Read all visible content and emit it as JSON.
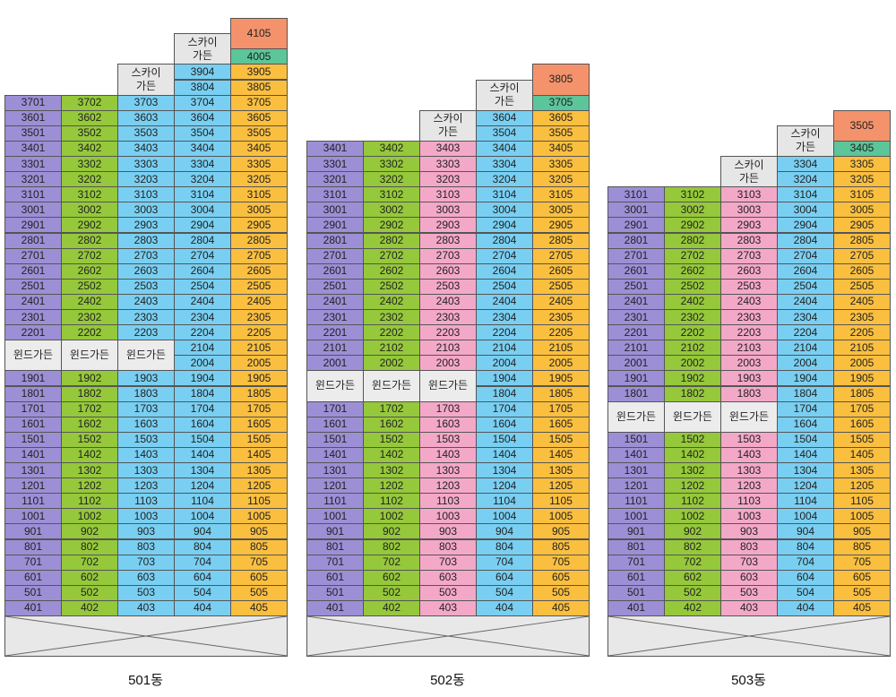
{
  "colors": {
    "purple": "#9d8fd6",
    "green": "#95c83a",
    "blue": "#79cff2",
    "pink": "#f4a8c8",
    "orange": "#fbbf3f",
    "salmon": "#f4936b",
    "teal": "#5cc59a",
    "gray": "#e6e6e6"
  },
  "sky_garden_label": "스카이\n가든",
  "wind_garden_label": "윈드가든",
  "buildings": [
    {
      "name": "501동",
      "wind_after_floor": 22,
      "rows": [
        {
          "floor": 41,
          "cols": [
            null,
            null,
            null,
            "sky",
            "4105"
          ],
          "top": true
        },
        {
          "floor": 40,
          "cols": [
            null,
            null,
            null,
            "sky",
            "4005"
          ]
        },
        {
          "floor": 39,
          "cols": [
            null,
            null,
            "sky",
            "3904",
            "3905"
          ]
        },
        {
          "floor": 38,
          "cols": [
            null,
            null,
            "sky",
            "3804",
            "3805"
          ]
        },
        {
          "floor": 37,
          "cols": [
            "3701",
            "3702",
            "3703",
            "3704",
            "3705"
          ]
        },
        {
          "floor": 36,
          "cols": [
            "3601",
            "3602",
            "3603",
            "3604",
            "3605"
          ]
        },
        {
          "floor": 35,
          "cols": [
            "3501",
            "3502",
            "3503",
            "3504",
            "3505"
          ]
        },
        {
          "floor": 34,
          "cols": [
            "3401",
            "3402",
            "3403",
            "3404",
            "3405"
          ]
        },
        {
          "floor": 33,
          "cols": [
            "3301",
            "3302",
            "3303",
            "3304",
            "3305"
          ]
        },
        {
          "floor": 32,
          "cols": [
            "3201",
            "3202",
            "3203",
            "3204",
            "3205"
          ]
        },
        {
          "floor": 31,
          "cols": [
            "3101",
            "3102",
            "3103",
            "3104",
            "3105"
          ]
        },
        {
          "floor": 30,
          "cols": [
            "3001",
            "3002",
            "3003",
            "3004",
            "3005"
          ]
        },
        {
          "floor": 29,
          "cols": [
            "2901",
            "2902",
            "2903",
            "2904",
            "2905"
          ]
        },
        {
          "floor": 28,
          "cols": [
            "2801",
            "2802",
            "2803",
            "2804",
            "2805"
          ]
        },
        {
          "floor": 27,
          "cols": [
            "2701",
            "2702",
            "2703",
            "2704",
            "2705"
          ]
        },
        {
          "floor": 26,
          "cols": [
            "2601",
            "2602",
            "2603",
            "2604",
            "2605"
          ]
        },
        {
          "floor": 25,
          "cols": [
            "2501",
            "2502",
            "2503",
            "2504",
            "2505"
          ]
        },
        {
          "floor": 24,
          "cols": [
            "2401",
            "2402",
            "2403",
            "2404",
            "2405"
          ]
        },
        {
          "floor": 23,
          "cols": [
            "2301",
            "2302",
            "2303",
            "2304",
            "2305"
          ]
        },
        {
          "floor": 22,
          "cols": [
            "2201",
            "2202",
            "2203",
            "2204",
            "2205"
          ]
        },
        {
          "floor": 21,
          "cols": [
            "wind",
            "wind",
            "wind",
            "2104",
            "2105"
          ]
        },
        {
          "floor": 20,
          "cols": [
            "wind",
            "wind",
            "wind",
            "2004",
            "2005"
          ]
        },
        {
          "floor": 19,
          "cols": [
            "1901",
            "1902",
            "1903",
            "1904",
            "1905"
          ]
        },
        {
          "floor": 18,
          "cols": [
            "1801",
            "1802",
            "1803",
            "1804",
            "1805"
          ]
        },
        {
          "floor": 17,
          "cols": [
            "1701",
            "1702",
            "1703",
            "1704",
            "1705"
          ]
        },
        {
          "floor": 16,
          "cols": [
            "1601",
            "1602",
            "1603",
            "1604",
            "1605"
          ]
        },
        {
          "floor": 15,
          "cols": [
            "1501",
            "1502",
            "1503",
            "1504",
            "1505"
          ]
        },
        {
          "floor": 14,
          "cols": [
            "1401",
            "1402",
            "1403",
            "1404",
            "1405"
          ]
        },
        {
          "floor": 13,
          "cols": [
            "1301",
            "1302",
            "1303",
            "1304",
            "1305"
          ]
        },
        {
          "floor": 12,
          "cols": [
            "1201",
            "1202",
            "1203",
            "1204",
            "1205"
          ]
        },
        {
          "floor": 11,
          "cols": [
            "1101",
            "1102",
            "1103",
            "1104",
            "1105"
          ]
        },
        {
          "floor": 10,
          "cols": [
            "1001",
            "1002",
            "1003",
            "1004",
            "1005"
          ]
        },
        {
          "floor": 9,
          "cols": [
            "901",
            "902",
            "903",
            "904",
            "905"
          ]
        },
        {
          "floor": 8,
          "cols": [
            "801",
            "802",
            "803",
            "804",
            "805"
          ]
        },
        {
          "floor": 7,
          "cols": [
            "701",
            "702",
            "703",
            "704",
            "705"
          ]
        },
        {
          "floor": 6,
          "cols": [
            "601",
            "602",
            "603",
            "604",
            "605"
          ]
        },
        {
          "floor": 5,
          "cols": [
            "501",
            "502",
            "503",
            "504",
            "505"
          ]
        },
        {
          "floor": 4,
          "cols": [
            "401",
            "402",
            "403",
            "404",
            "405"
          ]
        }
      ]
    },
    {
      "name": "502동",
      "rows": [
        {
          "floor": 38,
          "cols": [
            null,
            null,
            null,
            "sky",
            "3805"
          ],
          "top": true
        },
        {
          "floor": 37,
          "cols": [
            null,
            null,
            null,
            "sky",
            "3705"
          ]
        },
        {
          "floor": 36,
          "cols": [
            null,
            null,
            "sky",
            "3604",
            "3605"
          ]
        },
        {
          "floor": 35,
          "cols": [
            null,
            null,
            "sky",
            "3504",
            "3505"
          ]
        },
        {
          "floor": 34,
          "cols": [
            "3401",
            "3402",
            "3403",
            "3404",
            "3405"
          ]
        },
        {
          "floor": 33,
          "cols": [
            "3301",
            "3302",
            "3303",
            "3304",
            "3305"
          ]
        },
        {
          "floor": 32,
          "cols": [
            "3201",
            "3202",
            "3203",
            "3204",
            "3205"
          ]
        },
        {
          "floor": 31,
          "cols": [
            "3101",
            "3102",
            "3103",
            "3104",
            "3105"
          ]
        },
        {
          "floor": 30,
          "cols": [
            "3001",
            "3002",
            "3003",
            "3004",
            "3005"
          ]
        },
        {
          "floor": 29,
          "cols": [
            "2901",
            "2902",
            "2903",
            "2904",
            "2905"
          ]
        },
        {
          "floor": 28,
          "cols": [
            "2801",
            "2802",
            "2803",
            "2804",
            "2805"
          ]
        },
        {
          "floor": 27,
          "cols": [
            "2701",
            "2702",
            "2703",
            "2704",
            "2705"
          ]
        },
        {
          "floor": 26,
          "cols": [
            "2601",
            "2602",
            "2603",
            "2604",
            "2605"
          ]
        },
        {
          "floor": 25,
          "cols": [
            "2501",
            "2502",
            "2503",
            "2504",
            "2505"
          ]
        },
        {
          "floor": 24,
          "cols": [
            "2401",
            "2402",
            "2403",
            "2404",
            "2405"
          ]
        },
        {
          "floor": 23,
          "cols": [
            "2301",
            "2302",
            "2303",
            "2304",
            "2305"
          ]
        },
        {
          "floor": 22,
          "cols": [
            "2201",
            "2202",
            "2203",
            "2204",
            "2205"
          ]
        },
        {
          "floor": 21,
          "cols": [
            "2101",
            "2102",
            "2103",
            "2104",
            "2105"
          ]
        },
        {
          "floor": 20,
          "cols": [
            "2001",
            "2002",
            "2003",
            "2004",
            "2005"
          ]
        },
        {
          "floor": 19,
          "cols": [
            "wind",
            "wind",
            "wind",
            "1904",
            "1905"
          ]
        },
        {
          "floor": 18,
          "cols": [
            "wind",
            "wind",
            "wind",
            "1804",
            "1805"
          ]
        },
        {
          "floor": 17,
          "cols": [
            "1701",
            "1702",
            "1703",
            "1704",
            "1705"
          ]
        },
        {
          "floor": 16,
          "cols": [
            "1601",
            "1602",
            "1603",
            "1604",
            "1605"
          ]
        },
        {
          "floor": 15,
          "cols": [
            "1501",
            "1502",
            "1503",
            "1504",
            "1505"
          ]
        },
        {
          "floor": 14,
          "cols": [
            "1401",
            "1402",
            "1403",
            "1404",
            "1405"
          ]
        },
        {
          "floor": 13,
          "cols": [
            "1301",
            "1302",
            "1303",
            "1304",
            "1305"
          ]
        },
        {
          "floor": 12,
          "cols": [
            "1201",
            "1202",
            "1203",
            "1204",
            "1205"
          ]
        },
        {
          "floor": 11,
          "cols": [
            "1101",
            "1102",
            "1103",
            "1104",
            "1105"
          ]
        },
        {
          "floor": 10,
          "cols": [
            "1001",
            "1002",
            "1003",
            "1004",
            "1005"
          ]
        },
        {
          "floor": 9,
          "cols": [
            "901",
            "902",
            "903",
            "904",
            "905"
          ]
        },
        {
          "floor": 8,
          "cols": [
            "801",
            "802",
            "803",
            "804",
            "805"
          ]
        },
        {
          "floor": 7,
          "cols": [
            "701",
            "702",
            "703",
            "704",
            "705"
          ]
        },
        {
          "floor": 6,
          "cols": [
            "601",
            "602",
            "603",
            "604",
            "605"
          ]
        },
        {
          "floor": 5,
          "cols": [
            "501",
            "502",
            "503",
            "504",
            "505"
          ]
        },
        {
          "floor": 4,
          "cols": [
            "401",
            "402",
            "403",
            "404",
            "405"
          ]
        }
      ]
    },
    {
      "name": "503동",
      "rows": [
        {
          "floor": 35,
          "cols": [
            null,
            null,
            null,
            "sky",
            "3505"
          ],
          "top": true
        },
        {
          "floor": 34,
          "cols": [
            null,
            null,
            null,
            "sky",
            "3405"
          ]
        },
        {
          "floor": 33,
          "cols": [
            null,
            null,
            "sky",
            "3304",
            "3305"
          ]
        },
        {
          "floor": 32,
          "cols": [
            null,
            null,
            "sky",
            "3204",
            "3205"
          ]
        },
        {
          "floor": 31,
          "cols": [
            "3101",
            "3102",
            "3103",
            "3104",
            "3105"
          ]
        },
        {
          "floor": 30,
          "cols": [
            "3001",
            "3002",
            "3003",
            "3004",
            "3005"
          ]
        },
        {
          "floor": 29,
          "cols": [
            "2901",
            "2902",
            "2903",
            "2904",
            "2905"
          ]
        },
        {
          "floor": 28,
          "cols": [
            "2801",
            "2802",
            "2803",
            "2804",
            "2805"
          ]
        },
        {
          "floor": 27,
          "cols": [
            "2701",
            "2702",
            "2703",
            "2704",
            "2705"
          ]
        },
        {
          "floor": 26,
          "cols": [
            "2601",
            "2602",
            "2603",
            "2604",
            "2605"
          ]
        },
        {
          "floor": 25,
          "cols": [
            "2501",
            "2502",
            "2503",
            "2504",
            "2505"
          ]
        },
        {
          "floor": 24,
          "cols": [
            "2401",
            "2402",
            "2403",
            "2404",
            "2405"
          ]
        },
        {
          "floor": 23,
          "cols": [
            "2301",
            "2302",
            "2303",
            "2304",
            "2305"
          ]
        },
        {
          "floor": 22,
          "cols": [
            "2201",
            "2202",
            "2203",
            "2204",
            "2205"
          ]
        },
        {
          "floor": 21,
          "cols": [
            "2101",
            "2102",
            "2103",
            "2104",
            "2105"
          ]
        },
        {
          "floor": 20,
          "cols": [
            "2001",
            "2002",
            "2003",
            "2004",
            "2005"
          ]
        },
        {
          "floor": 19,
          "cols": [
            "1901",
            "1902",
            "1903",
            "1904",
            "1905"
          ]
        },
        {
          "floor": 18,
          "cols": [
            "1801",
            "1802",
            "1803",
            "1804",
            "1805"
          ]
        },
        {
          "floor": 17,
          "cols": [
            "wind",
            "wind",
            "wind",
            "1704",
            "1705"
          ]
        },
        {
          "floor": 16,
          "cols": [
            "wind",
            "wind",
            "wind",
            "1604",
            "1605"
          ]
        },
        {
          "floor": 15,
          "cols": [
            "1501",
            "1502",
            "1503",
            "1504",
            "1505"
          ]
        },
        {
          "floor": 14,
          "cols": [
            "1401",
            "1402",
            "1403",
            "1404",
            "1405"
          ]
        },
        {
          "floor": 13,
          "cols": [
            "1301",
            "1302",
            "1303",
            "1304",
            "1305"
          ]
        },
        {
          "floor": 12,
          "cols": [
            "1201",
            "1202",
            "1203",
            "1204",
            "1205"
          ]
        },
        {
          "floor": 11,
          "cols": [
            "1101",
            "1102",
            "1103",
            "1104",
            "1105"
          ]
        },
        {
          "floor": 10,
          "cols": [
            "1001",
            "1002",
            "1003",
            "1004",
            "1005"
          ]
        },
        {
          "floor": 9,
          "cols": [
            "901",
            "902",
            "903",
            "904",
            "905"
          ]
        },
        {
          "floor": 8,
          "cols": [
            "801",
            "802",
            "803",
            "804",
            "805"
          ]
        },
        {
          "floor": 7,
          "cols": [
            "701",
            "702",
            "703",
            "704",
            "705"
          ]
        },
        {
          "floor": 6,
          "cols": [
            "601",
            "602",
            "603",
            "604",
            "605"
          ]
        },
        {
          "floor": 5,
          "cols": [
            "501",
            "502",
            "503",
            "504",
            "505"
          ]
        },
        {
          "floor": 4,
          "cols": [
            "401",
            "402",
            "403",
            "404",
            "405"
          ]
        }
      ]
    }
  ]
}
